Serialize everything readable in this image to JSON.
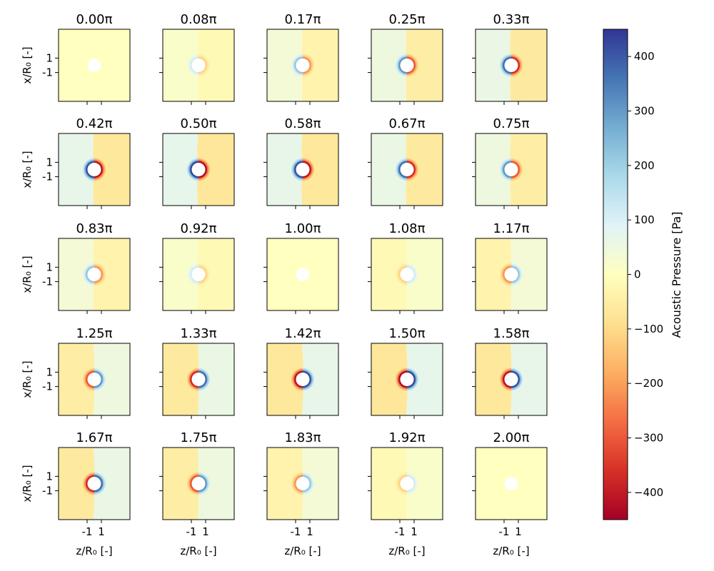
{
  "chart_data": {
    "type": "heatmap",
    "layout": {
      "rows": 5,
      "cols": 5
    },
    "panel_titles": [
      "0.00π",
      "0.08π",
      "0.17π",
      "0.25π",
      "0.33π",
      "0.42π",
      "0.50π",
      "0.58π",
      "0.67π",
      "0.75π",
      "0.83π",
      "0.92π",
      "1.00π",
      "1.08π",
      "1.17π",
      "1.25π",
      "1.33π",
      "1.42π",
      "1.50π",
      "1.58π",
      "1.67π",
      "1.75π",
      "1.83π",
      "1.92π",
      "2.00π"
    ],
    "phase_over_pi": [
      0.0,
      0.0833,
      0.1667,
      0.25,
      0.3333,
      0.4167,
      0.5,
      0.5833,
      0.6667,
      0.75,
      0.8333,
      0.9167,
      1.0,
      1.0833,
      1.1667,
      1.25,
      1.3333,
      1.4167,
      1.5,
      1.5833,
      1.6667,
      1.75,
      1.8333,
      1.9167,
      2.0
    ],
    "peak_pressure_pa": 430,
    "background_pressure_pa": 70,
    "xlabel": "z/R₀ [-]",
    "ylabel": "x/R₀ [-]",
    "x_ticks": [
      "-1",
      "1"
    ],
    "y_ticks": [
      "1",
      "-1"
    ],
    "colorbar": {
      "label": "Acoustic Pressure [Pa]",
      "range": [
        -450,
        450
      ],
      "ticks": [
        400,
        300,
        200,
        100,
        0,
        -100,
        -200,
        -300,
        -400
      ],
      "tick_labels": [
        "400",
        "300",
        "200",
        "100",
        "0",
        "−100",
        "−200",
        "−300",
        "−400"
      ],
      "colormap": "RdYlBu",
      "stops": [
        "#a50026",
        "#d73027",
        "#f46d43",
        "#fdae61",
        "#fee090",
        "#ffffbf",
        "#e0f3f8",
        "#abd9e9",
        "#74add1",
        "#4575b4",
        "#313695"
      ]
    }
  }
}
